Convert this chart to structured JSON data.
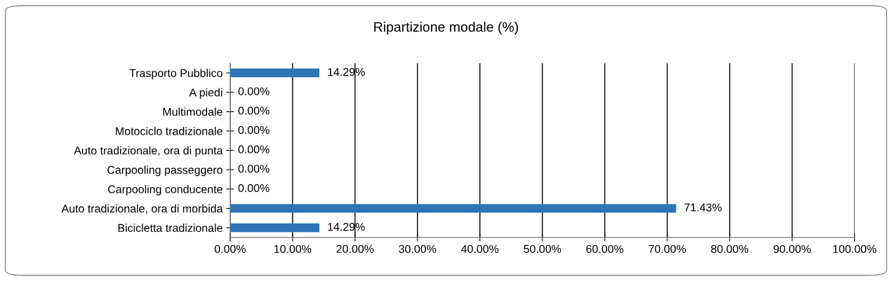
{
  "chart_data": {
    "type": "bar",
    "orientation": "horizontal",
    "title": "Ripartizione modale (%)",
    "categories": [
      "Trasporto Pubblico",
      "A piedi",
      "Multimodale",
      "Motociclo tradizionale",
      "Auto tradizionale, ora di punta",
      "Carpooling passeggero",
      "Carpooling conducente",
      "Auto tradizionale, ora di morbida",
      "Bicicletta tradizionale"
    ],
    "values": [
      14.29,
      0,
      0,
      0,
      0,
      0,
      0,
      71.43,
      14.29
    ],
    "value_labels": [
      "14.29%",
      "0.00%",
      "0.00%",
      "0.00%",
      "0.00%",
      "0.00%",
      "0.00%",
      "71.43%",
      "14.29%"
    ],
    "color": "#2e75b6",
    "xlim": [
      0,
      100
    ],
    "xticks": [
      {
        "value": 0,
        "label": "0.00%"
      },
      {
        "value": 10,
        "label": "10.00%"
      },
      {
        "value": 20,
        "label": "20.00%"
      },
      {
        "value": 30,
        "label": "30.00%"
      },
      {
        "value": 40,
        "label": "40.00%"
      },
      {
        "value": 50,
        "label": "50.00%"
      },
      {
        "value": 60,
        "label": "60.00%"
      },
      {
        "value": 70,
        "label": "70.00%"
      },
      {
        "value": 80,
        "label": "80.00%"
      },
      {
        "value": 90,
        "label": "90.00%"
      },
      {
        "value": 100,
        "label": "100.00%"
      }
    ],
    "grid": "x",
    "legend": false
  }
}
